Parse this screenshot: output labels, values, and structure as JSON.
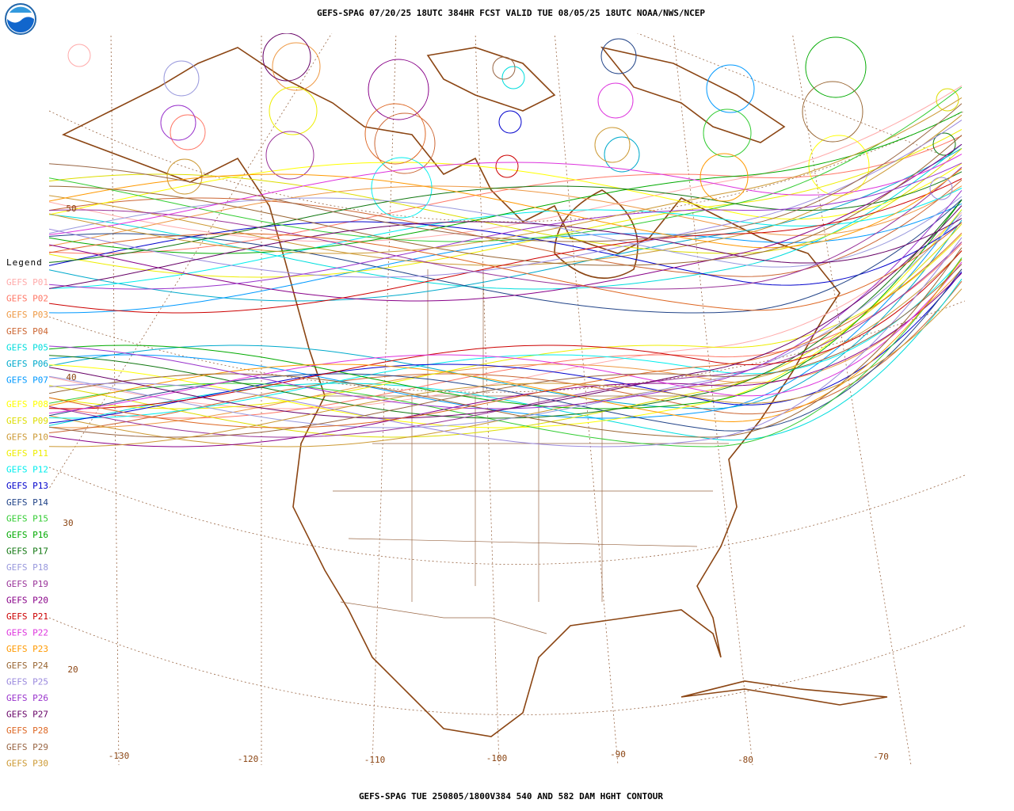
{
  "header": {
    "title": "GEFS-SPAG 07/20/25 18UTC 384HR FCST VALID TUE 08/05/25 18UTC NOAA/NWS/NCEP"
  },
  "footer": {
    "text": "GEFS-SPAG TUE 250805/1800V384 540 AND 582 DAM HGHT CONTOUR"
  },
  "legend": {
    "title": "Legend",
    "members": [
      {
        "name": "GEFS P01",
        "color": "#ffaaaa"
      },
      {
        "name": "GEFS P02",
        "color": "#ff7766"
      },
      {
        "name": "GEFS P03",
        "color": "#ee9944"
      },
      {
        "name": "GEFS P04",
        "color": "#cc6633"
      },
      {
        "name": "GEFS P05",
        "color": "#00dddd"
      },
      {
        "name": "GEFS P06",
        "color": "#00aacc"
      },
      {
        "name": "GEFS P07",
        "color": "#0099ff"
      },
      {
        "name": "GEFS P08",
        "color": "#ffff00"
      },
      {
        "name": "GEFS P09",
        "color": "#dddd00"
      },
      {
        "name": "GEFS P10",
        "color": "#cc9933"
      },
      {
        "name": "GEFS P11",
        "color": "#eeee00"
      },
      {
        "name": "GEFS P12",
        "color": "#00eeee"
      },
      {
        "name": "GEFS P13",
        "color": "#0000cc"
      },
      {
        "name": "GEFS P14",
        "color": "#224488"
      },
      {
        "name": "GEFS P15",
        "color": "#33cc33"
      },
      {
        "name": "GEFS P16",
        "color": "#00aa00"
      },
      {
        "name": "GEFS P17",
        "color": "#117711"
      },
      {
        "name": "GEFS P18",
        "color": "#9999dd"
      },
      {
        "name": "GEFS P19",
        "color": "#993399"
      },
      {
        "name": "GEFS P20",
        "color": "#880088"
      },
      {
        "name": "GEFS P21",
        "color": "#cc0000"
      },
      {
        "name": "GEFS P22",
        "color": "#dd33dd"
      },
      {
        "name": "GEFS P23",
        "color": "#ff9900"
      },
      {
        "name": "GEFS P24",
        "color": "#996633"
      },
      {
        "name": "GEFS P25",
        "color": "#9988dd"
      },
      {
        "name": "GEFS P26",
        "color": "#9933cc"
      },
      {
        "name": "GEFS P27",
        "color": "#660066"
      },
      {
        "name": "GEFS P28",
        "color": "#dd6622"
      },
      {
        "name": "GEFS P29",
        "color": "#996644"
      },
      {
        "name": "GEFS P30",
        "color": "#cc9933"
      }
    ]
  },
  "map": {
    "latitude_labels": [
      "50",
      "40",
      "30",
      "20"
    ],
    "longitude_labels": [
      "-130",
      "-120",
      "-110",
      "-100",
      "-90",
      "-80",
      "-70"
    ]
  }
}
